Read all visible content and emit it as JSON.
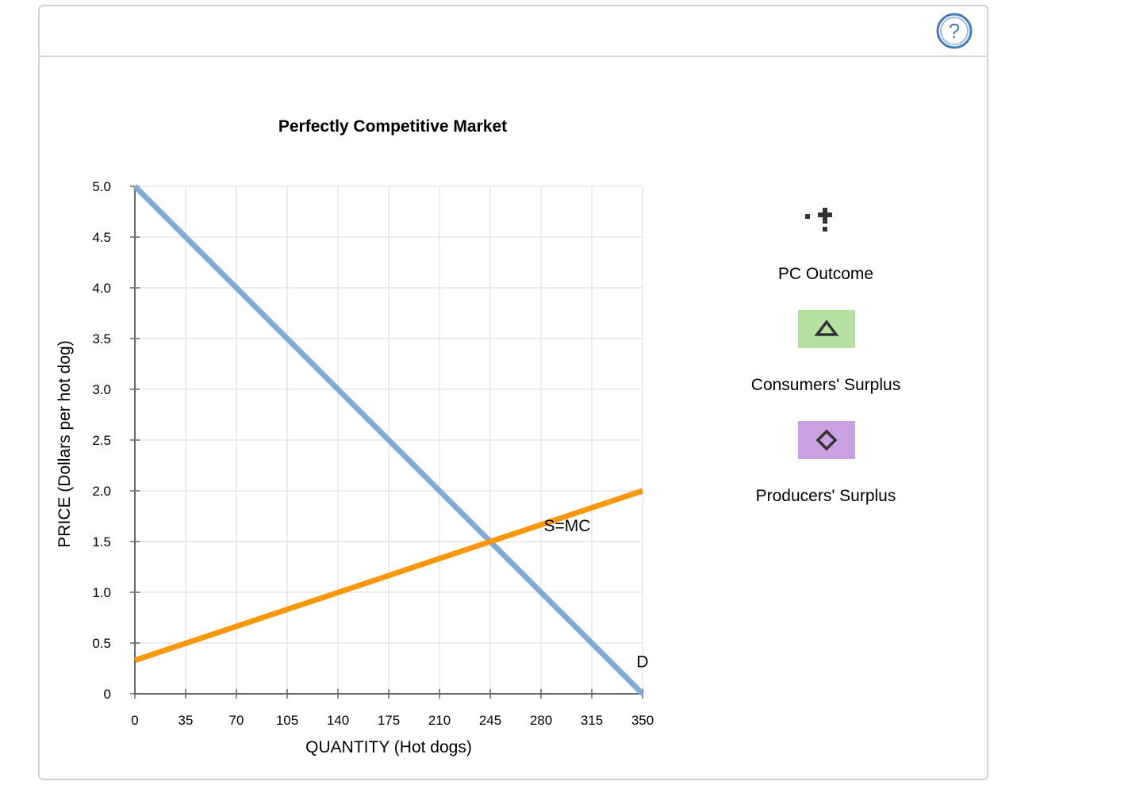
{
  "help": {
    "icon": "question-mark-icon",
    "label": "?"
  },
  "palette": {
    "items": [
      {
        "icon": "black-point-cross-icon",
        "label": "PC Outcome"
      },
      {
        "icon": "green-triangle-icon",
        "label": "Consumers' Surplus",
        "color": "#b5e0a0"
      },
      {
        "icon": "purple-diamond-icon",
        "label": "Producers' Surplus",
        "color": "#cba0e3"
      }
    ]
  },
  "chart_data": {
    "type": "line",
    "title": "Perfectly Competitive Market",
    "xlabel": "QUANTITY (Hot dogs)",
    "ylabel": "PRICE (Dollars per hot dog)",
    "xlim": [
      0,
      350
    ],
    "ylim": [
      0,
      5
    ],
    "x_ticks": [
      0,
      35,
      70,
      105,
      140,
      175,
      210,
      245,
      280,
      315,
      350
    ],
    "x_tick_labels": [
      "0",
      "35",
      "70",
      "105",
      "140",
      "175",
      "210",
      "245",
      "280",
      "315",
      "350"
    ],
    "y_ticks": [
      0,
      0.5,
      1,
      1.5,
      2,
      2.5,
      3,
      3.5,
      4,
      4.5,
      5
    ],
    "y_tick_labels": [
      "0",
      "0.5",
      "1.0",
      "1.5",
      "2.0",
      "2.5",
      "3.0",
      "3.5",
      "4.0",
      "4.5",
      "5.0"
    ],
    "grid": true,
    "series": [
      {
        "name": "D",
        "color": "#82aad4",
        "points": [
          [
            0,
            5.0
          ],
          [
            350,
            0.0
          ]
        ]
      },
      {
        "name": "S=MC",
        "color": "#f7980f",
        "points": [
          [
            0,
            0.33
          ],
          [
            350,
            2.0
          ]
        ]
      }
    ]
  }
}
